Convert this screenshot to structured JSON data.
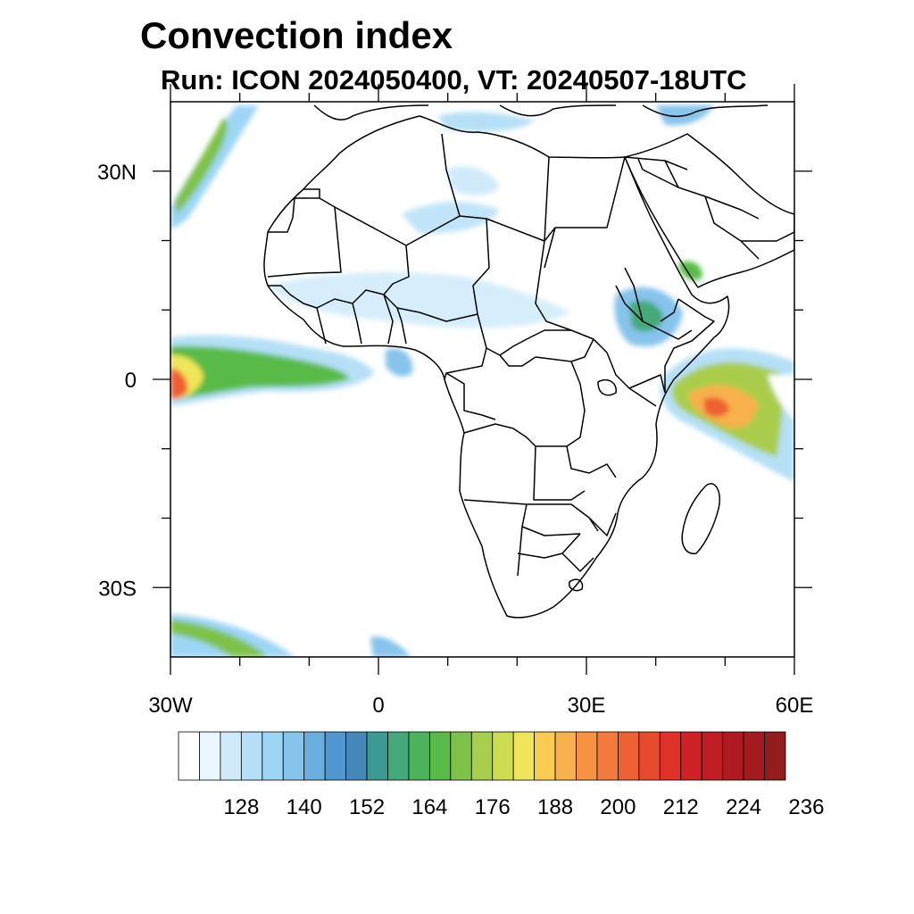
{
  "title": "Convection index",
  "subtitle": "Run: ICON 2024050400,  VT: 20240507-18UTC",
  "map": {
    "lon_range": [
      -30,
      60
    ],
    "lat_range": [
      -40,
      40
    ],
    "lat_ticks": [
      {
        "lat": 30,
        "label": "30N"
      },
      {
        "lat": 0,
        "label": "0"
      },
      {
        "lat": -30,
        "label": "30S"
      }
    ],
    "lon_ticks": [
      {
        "lon": -30,
        "label": "30W"
      },
      {
        "lon": 0,
        "label": "0"
      },
      {
        "lon": 30,
        "label": "30E"
      },
      {
        "lon": 60,
        "label": "60E"
      }
    ],
    "minor_lon_ticks": [
      -20,
      -10,
      10,
      20,
      40,
      50
    ],
    "minor_lat_ticks": [
      20,
      10,
      -10,
      -20
    ]
  },
  "colorbar": {
    "labels": [
      "128",
      "140",
      "152",
      "164",
      "176",
      "188",
      "200",
      "212",
      "224",
      "236"
    ],
    "colors": [
      "#ffffff",
      "#eaf6fd",
      "#cfebfa",
      "#b5e0f7",
      "#9dd6f5",
      "#86c4eb",
      "#6aaee0",
      "#5197cf",
      "#4488b8",
      "#3c9a92",
      "#44a97a",
      "#4bb35c",
      "#58bb47",
      "#7fc24a",
      "#a9cd4c",
      "#cddd52",
      "#efe55a",
      "#f8cc52",
      "#f7b04c",
      "#f59343",
      "#f27a3c",
      "#ee6133",
      "#e84a2d",
      "#de3128",
      "#cf2226",
      "#bf1c24",
      "#af1922",
      "#a31a1f",
      "#921d1c"
    ]
  }
}
